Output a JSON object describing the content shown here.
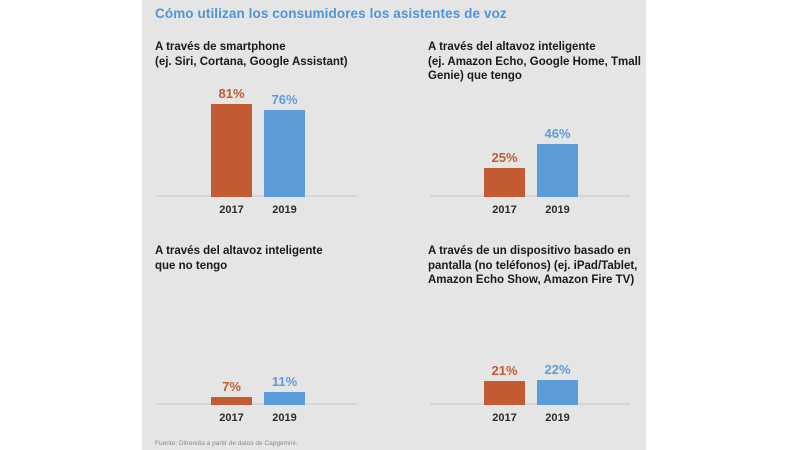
{
  "title": "Cómo utilizan los consumidores los asistentes de voz",
  "footer": "Fuente: Ditrendia a partir de datos de Capgemini.",
  "colors": {
    "title": "#4d96d9",
    "panel_bg": "#e5e5e5",
    "axis_line": "#d6d6d6",
    "year_label": "#2b2b2b",
    "series_2017": "#c25b31",
    "series_2019": "#5b9cd9"
  },
  "chart_data": [
    {
      "type": "bar",
      "title": "A través de smartphone\n(ej. Siri, Cortana, Google Assistant)",
      "categories": [
        "2017",
        "2019"
      ],
      "values": [
        81,
        76
      ],
      "labels": [
        "81%",
        "76%"
      ],
      "series_colors": [
        "#c25b31",
        "#5b9cd9"
      ],
      "ylim": [
        0,
        100
      ],
      "grid": false,
      "legend": "none"
    },
    {
      "type": "bar",
      "title": "A través del altavoz inteligente\n(ej. Amazon Echo, Google Home, Tmall\nGenie) que tengo",
      "categories": [
        "2017",
        "2019"
      ],
      "values": [
        25,
        46
      ],
      "labels": [
        "25%",
        "46%"
      ],
      "series_colors": [
        "#c25b31",
        "#5b9cd9"
      ],
      "ylim": [
        0,
        100
      ],
      "grid": false,
      "legend": "none"
    },
    {
      "type": "bar",
      "title": "A través del altavoz inteligente\nque no tengo",
      "categories": [
        "2017",
        "2019"
      ],
      "values": [
        7,
        11
      ],
      "labels": [
        "7%",
        "11%"
      ],
      "series_colors": [
        "#c25b31",
        "#5b9cd9"
      ],
      "ylim": [
        0,
        100
      ],
      "grid": false,
      "legend": "none"
    },
    {
      "type": "bar",
      "title": "A través de un dispositivo basado en\npantalla (no teléfonos) (ej. iPad/Tablet,\nAmazon Echo Show, Amazon Fire TV)",
      "categories": [
        "2017",
        "2019"
      ],
      "values": [
        21,
        22
      ],
      "labels": [
        "21%",
        "22%"
      ],
      "series_colors": [
        "#c25b31",
        "#5b9cd9"
      ],
      "ylim": [
        0,
        100
      ],
      "grid": false,
      "legend": "none"
    }
  ]
}
